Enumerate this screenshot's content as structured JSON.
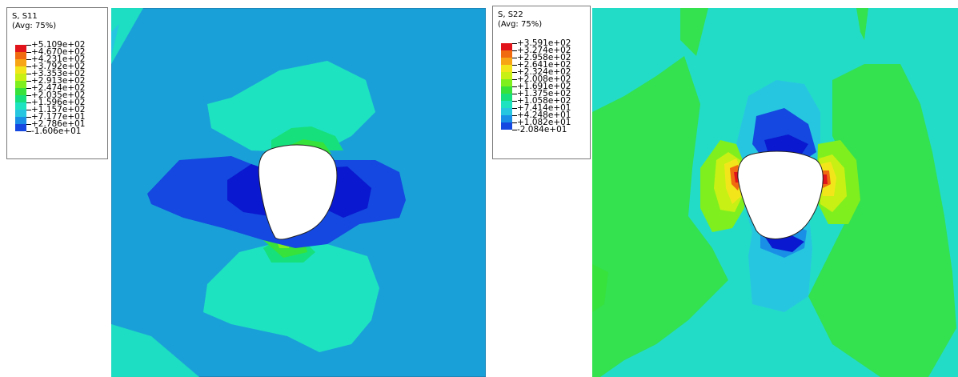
{
  "panels": [
    {
      "id": "s11",
      "legend": {
        "title": "S, S11",
        "subtitle": "(Avg: 75%)",
        "labels": [
          "+5.109e+02",
          "+4.670e+02",
          "+4.231e+02",
          "+3.792e+02",
          "+3.353e+02",
          "+2.913e+02",
          "+2.474e+02",
          "+2.035e+02",
          "+1.596e+02",
          "+1.157e+02",
          "+7.177e+01",
          "+2.786e+01",
          "-1.606e+01"
        ]
      }
    },
    {
      "id": "s22",
      "legend": {
        "title": "S, S22",
        "subtitle": "(Avg: 75%)",
        "labels": [
          "+3.591e+02",
          "+3.274e+02",
          "+2.958e+02",
          "+2.641e+02",
          "+2.324e+02",
          "+2.008e+02",
          "+1.691e+02",
          "+1.375e+02",
          "+1.058e+02",
          "+7.414e+01",
          "+4.248e+01",
          "+1.082e+01",
          "-2.084e+01"
        ]
      }
    }
  ],
  "colors": {
    "scale": [
      "#e0141a",
      "#f06a10",
      "#f7a514",
      "#f2e61b",
      "#c8f014",
      "#7ff01e",
      "#37e23a",
      "#16e07c",
      "#1ee3c0",
      "#27c6e0",
      "#1a8fe6",
      "#1448e0",
      "#0a18cf"
    ],
    "s11_background": "#1aa0d8",
    "s22_background": "#22dcc8"
  }
}
